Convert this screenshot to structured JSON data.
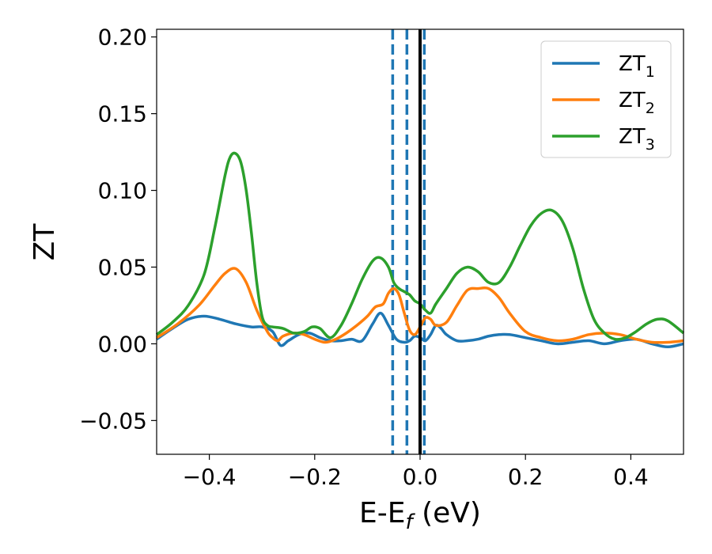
{
  "chart_data": {
    "type": "line",
    "xlabel": "E-E",
    "xlabel_sub": "f",
    "xlabel_unit": " (eV)",
    "ylabel": "ZT",
    "xlim": [
      -0.5,
      0.5
    ],
    "ylim": [
      -0.072,
      0.205
    ],
    "xticks": [
      -0.4,
      -0.2,
      0.0,
      0.2,
      0.4
    ],
    "xtick_labels": [
      "−0.4",
      "−0.2",
      "0.0",
      "0.2",
      "0.4"
    ],
    "yticks": [
      -0.05,
      0.0,
      0.05,
      0.1,
      0.15,
      0.2
    ],
    "ytick_labels": [
      "−0.05",
      "0.00",
      "0.05",
      "0.10",
      "0.15",
      "0.20"
    ],
    "grid": false,
    "legend_position": "top-right",
    "vlines": [
      {
        "x": -0.052,
        "style": "dashed",
        "color": "#1f77b4"
      },
      {
        "x": -0.025,
        "style": "dashed",
        "color": "#1f77b4"
      },
      {
        "x": 0.008,
        "style": "dashed",
        "color": "#1f77b4"
      },
      {
        "x": 0.0,
        "style": "solid",
        "color": "#000000"
      }
    ],
    "series": [
      {
        "name": "ZT",
        "sub": "1",
        "color": "#1f77b4",
        "x": [
          -0.5,
          -0.47,
          -0.44,
          -0.41,
          -0.38,
          -0.35,
          -0.32,
          -0.3,
          -0.28,
          -0.265,
          -0.25,
          -0.23,
          -0.21,
          -0.19,
          -0.17,
          -0.15,
          -0.13,
          -0.11,
          -0.09,
          -0.075,
          -0.06,
          -0.045,
          -0.03,
          -0.02,
          -0.01,
          0.0,
          0.01,
          0.02,
          0.03,
          0.04,
          0.05,
          0.07,
          0.09,
          0.11,
          0.13,
          0.15,
          0.17,
          0.2,
          0.23,
          0.26,
          0.29,
          0.32,
          0.35,
          0.38,
          0.41,
          0.44,
          0.47,
          0.5
        ],
        "y": [
          0.003,
          0.01,
          0.016,
          0.018,
          0.016,
          0.013,
          0.011,
          0.011,
          0.008,
          -0.001,
          0.002,
          0.006,
          0.007,
          0.004,
          0.002,
          0.002,
          0.003,
          0.002,
          0.013,
          0.02,
          0.012,
          0.003,
          0.001,
          0.002,
          0.005,
          0.004,
          0.002,
          0.006,
          0.012,
          0.01,
          0.006,
          0.002,
          0.002,
          0.003,
          0.005,
          0.006,
          0.006,
          0.004,
          0.002,
          0.0,
          0.001,
          0.002,
          0.0,
          0.002,
          0.003,
          0.0,
          -0.002,
          0.0
        ]
      },
      {
        "name": "ZT",
        "sub": "2",
        "color": "#ff7f0e",
        "x": [
          -0.5,
          -0.46,
          -0.42,
          -0.39,
          -0.37,
          -0.35,
          -0.33,
          -0.31,
          -0.29,
          -0.28,
          -0.27,
          -0.26,
          -0.24,
          -0.22,
          -0.2,
          -0.18,
          -0.16,
          -0.14,
          -0.12,
          -0.1,
          -0.085,
          -0.07,
          -0.06,
          -0.05,
          -0.04,
          -0.03,
          -0.02,
          -0.01,
          0.0,
          0.01,
          0.02,
          0.03,
          0.05,
          0.07,
          0.09,
          0.11,
          0.13,
          0.15,
          0.17,
          0.2,
          0.23,
          0.26,
          0.29,
          0.32,
          0.35,
          0.38,
          0.41,
          0.44,
          0.47,
          0.5
        ],
        "y": [
          0.004,
          0.013,
          0.025,
          0.038,
          0.046,
          0.049,
          0.04,
          0.022,
          0.008,
          0.004,
          0.002,
          0.005,
          0.007,
          0.006,
          0.003,
          0.001,
          0.003,
          0.007,
          0.012,
          0.018,
          0.024,
          0.026,
          0.033,
          0.036,
          0.032,
          0.02,
          0.009,
          0.006,
          0.011,
          0.017,
          0.016,
          0.012,
          0.014,
          0.025,
          0.035,
          0.036,
          0.036,
          0.03,
          0.02,
          0.008,
          0.004,
          0.002,
          0.003,
          0.006,
          0.007,
          0.006,
          0.003,
          0.001,
          0.001,
          0.002
        ]
      },
      {
        "name": "ZT",
        "sub": "3",
        "color": "#2ca02c",
        "x": [
          -0.5,
          -0.47,
          -0.44,
          -0.41,
          -0.39,
          -0.37,
          -0.36,
          -0.35,
          -0.34,
          -0.33,
          -0.32,
          -0.31,
          -0.3,
          -0.29,
          -0.28,
          -0.26,
          -0.24,
          -0.22,
          -0.205,
          -0.19,
          -0.17,
          -0.15,
          -0.13,
          -0.11,
          -0.09,
          -0.075,
          -0.06,
          -0.05,
          -0.04,
          -0.03,
          -0.02,
          -0.01,
          0.0,
          0.01,
          0.02,
          0.03,
          0.05,
          0.07,
          0.09,
          0.11,
          0.13,
          0.15,
          0.17,
          0.19,
          0.21,
          0.23,
          0.25,
          0.27,
          0.29,
          0.31,
          0.33,
          0.35,
          0.37,
          0.39,
          0.41,
          0.43,
          0.45,
          0.47,
          0.5
        ],
        "y": [
          0.006,
          0.014,
          0.025,
          0.045,
          0.075,
          0.11,
          0.122,
          0.124,
          0.118,
          0.1,
          0.072,
          0.04,
          0.018,
          0.012,
          0.011,
          0.01,
          0.007,
          0.008,
          0.011,
          0.01,
          0.004,
          0.012,
          0.026,
          0.042,
          0.054,
          0.056,
          0.05,
          0.04,
          0.036,
          0.034,
          0.032,
          0.028,
          0.026,
          0.022,
          0.02,
          0.026,
          0.036,
          0.046,
          0.05,
          0.047,
          0.04,
          0.04,
          0.05,
          0.064,
          0.077,
          0.085,
          0.087,
          0.08,
          0.062,
          0.036,
          0.016,
          0.007,
          0.003,
          0.004,
          0.008,
          0.013,
          0.016,
          0.015,
          0.007
        ]
      }
    ]
  }
}
